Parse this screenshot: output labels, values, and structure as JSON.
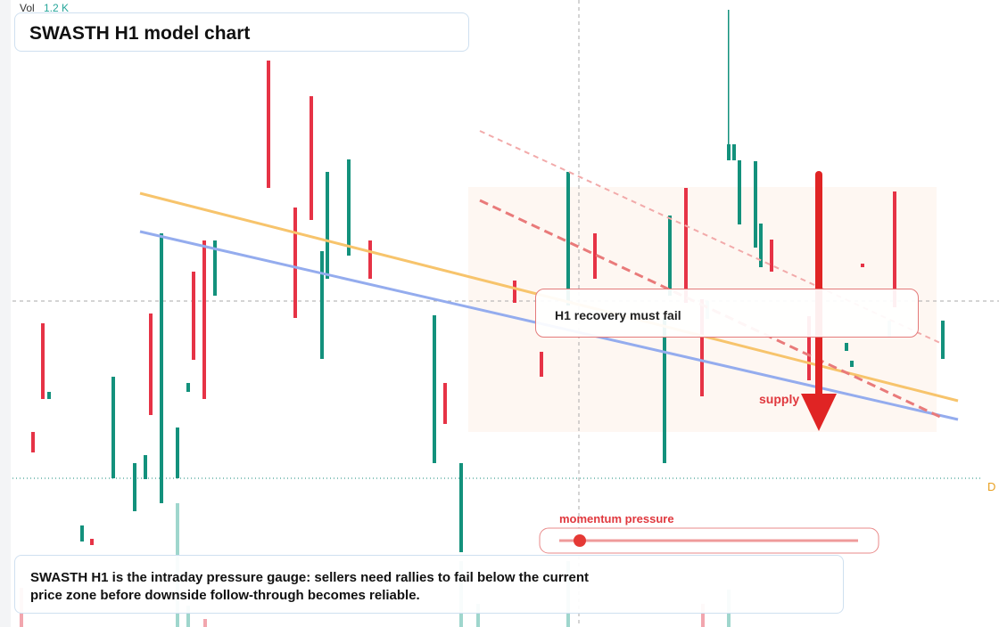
{
  "header": {
    "vol_label": "Vol",
    "vol_value": "1.2 K",
    "title": "SWASTH H1 model chart"
  },
  "annotations": {
    "callout": "H1 recovery must fail",
    "zone_label": "supply",
    "price_tag": "D"
  },
  "gauge": {
    "label": "momentum pressure"
  },
  "footer": {
    "text": "SWASTH H1 is the intraday pressure gauge: sellers need rallies to fail below the current price zone before downside follow-through becomes reliable."
  }
}
